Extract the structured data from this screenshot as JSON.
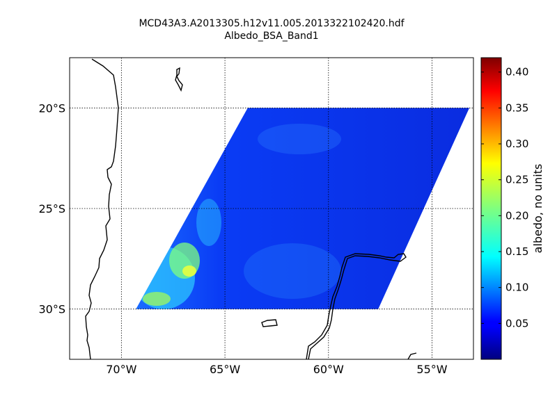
{
  "title_line1": "MCD43A3.A2013305.h12v11.005.2013322102420.hdf",
  "title_line2": "Albedo_BSA_Band1",
  "map": {
    "lon_range": [
      -72.5,
      -53.0
    ],
    "lat_range": [
      -32.5,
      -17.5
    ],
    "lon_ticks": [
      {
        "value": -70,
        "label": "70°W"
      },
      {
        "value": -65,
        "label": "65°W"
      },
      {
        "value": -60,
        "label": "60°W"
      },
      {
        "value": -55,
        "label": "55°W"
      }
    ],
    "lat_ticks": [
      {
        "value": -20,
        "label": "20°S"
      },
      {
        "value": -25,
        "label": "25°S"
      },
      {
        "value": -30,
        "label": "30°S"
      }
    ],
    "grid": "dotted",
    "granule_corners": [
      [
        -63.9,
        -20
      ],
      [
        -53.2,
        -20
      ],
      [
        -57.6,
        -30
      ],
      [
        -69.3,
        -30
      ]
    ]
  },
  "colorbar": {
    "label": "albedo, no units",
    "colormap": "jet",
    "range": [
      0.0,
      0.42
    ],
    "ticks": [
      {
        "value": 0.05,
        "label": "0.05"
      },
      {
        "value": 0.1,
        "label": "0.10"
      },
      {
        "value": 0.15,
        "label": "0.15"
      },
      {
        "value": 0.2,
        "label": "0.20"
      },
      {
        "value": 0.25,
        "label": "0.25"
      },
      {
        "value": 0.3,
        "label": "0.30"
      },
      {
        "value": 0.35,
        "label": "0.35"
      },
      {
        "value": 0.4,
        "label": "0.40"
      }
    ]
  },
  "colors": {
    "jet_low": "#00007f",
    "jet_mid": "#7fff7f",
    "jet_high": "#7f0000",
    "coastline": "#000000"
  }
}
